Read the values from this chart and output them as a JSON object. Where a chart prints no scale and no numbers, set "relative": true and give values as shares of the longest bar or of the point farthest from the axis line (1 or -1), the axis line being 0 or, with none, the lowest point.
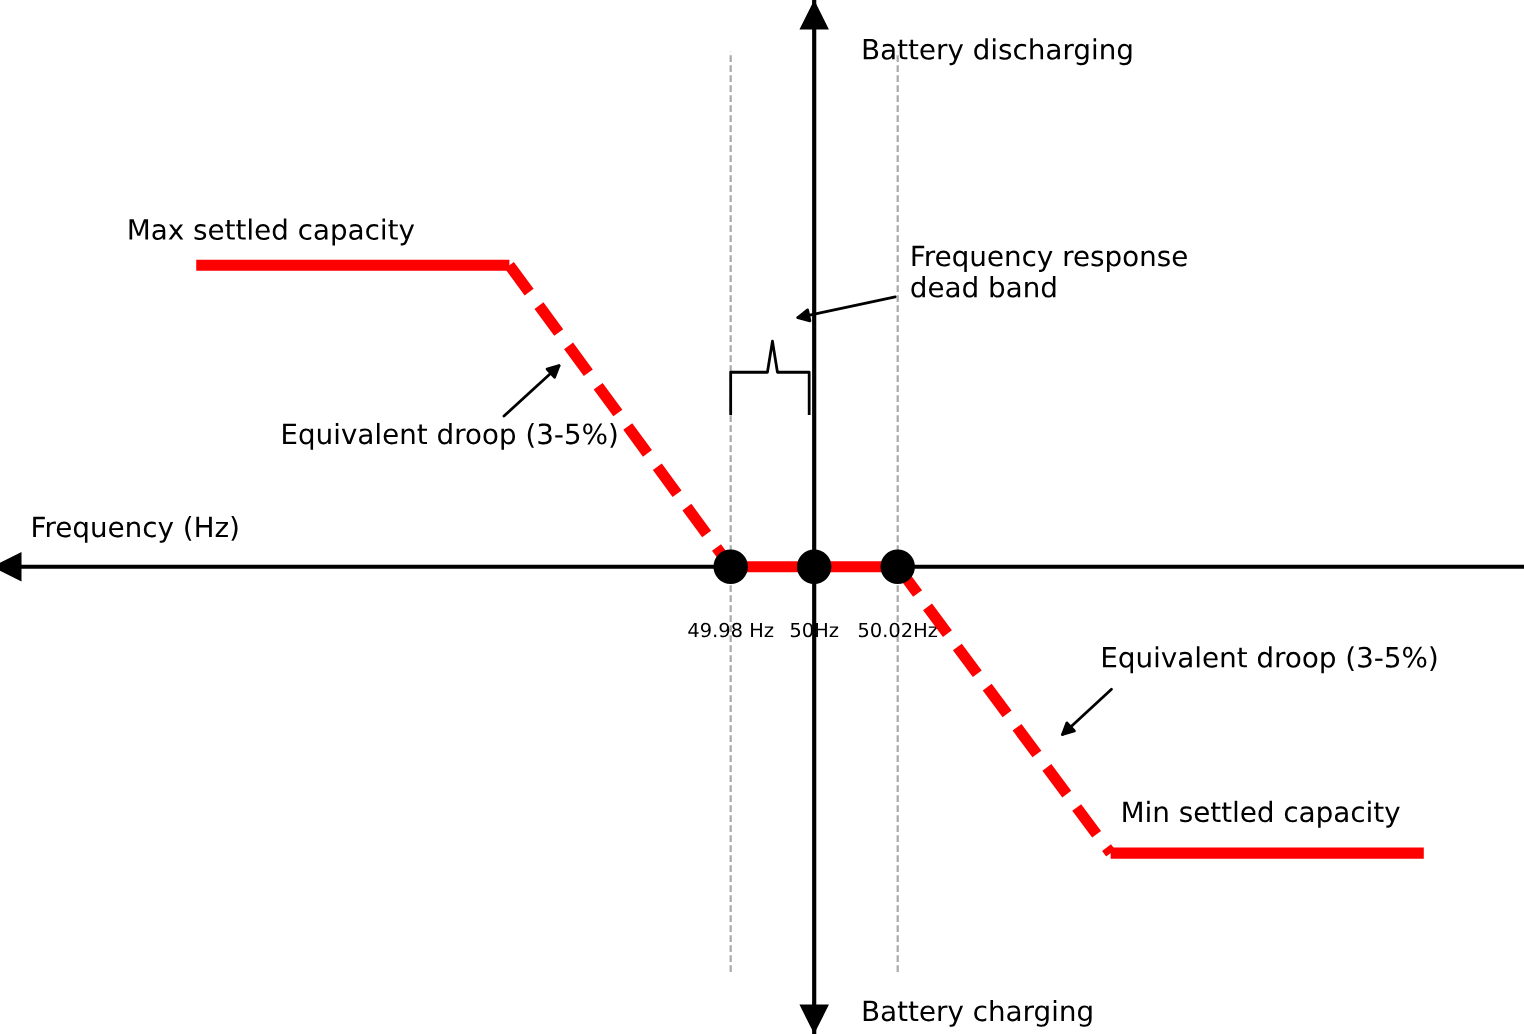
{
  "chart_data": {
    "type": "line",
    "xlabel": "Frequency (Hz)",
    "relative": true,
    "xlim": [
      49.805,
      50.17
    ],
    "xticks": [
      {
        "value": 49.98,
        "label": "49.98 Hz"
      },
      {
        "value": 50,
        "label": "50Hz"
      },
      {
        "value": 50.02,
        "label": "50.02Hz"
      }
    ],
    "series": [
      {
        "x": [
          49.852,
          49.927
        ],
        "values": [
          1,
          1
        ],
        "color": "#ff0000",
        "line_style": "solid"
      },
      {
        "x": [
          49.927,
          49.98
        ],
        "values": [
          1,
          0
        ],
        "color": "#ff0000",
        "line_style": "dashed"
      },
      {
        "x": [
          49.98,
          50.02
        ],
        "values": [
          0,
          0
        ],
        "color": "#ff0000",
        "line_style": "solid"
      },
      {
        "x": [
          50.02,
          50.071
        ],
        "values": [
          0,
          -0.95
        ],
        "color": "#ff0000",
        "line_style": "dashed"
      },
      {
        "x": [
          50.071,
          50.146
        ],
        "values": [
          -0.95,
          -0.95
        ],
        "color": "#ff0000",
        "line_style": "solid"
      },
      {
        "type": "scatter",
        "x": [
          49.98,
          50,
          50.02
        ],
        "values": [
          0,
          0,
          0
        ],
        "color": "#000000",
        "marker": "circle"
      }
    ],
    "ref_lines": [
      {
        "axis": "x",
        "value": 50,
        "color": "#000000",
        "line_style": "solid"
      },
      {
        "axis": "x",
        "value": 49.98,
        "color": "#aaaaaa",
        "line_style": "dashed"
      },
      {
        "axis": "x",
        "value": 50.02,
        "color": "#aaaaaa",
        "line_style": "dashed"
      }
    ],
    "annotations": [
      {
        "text": "Max settled capacity",
        "x": 49.852,
        "y": 1
      },
      "Equivalent droop (3-5%)",
      "Frequency response\ndead band",
      "Equivalent droop (3-5%)",
      {
        "text": "Min settled capacity",
        "x": 50.1,
        "y": -0.95
      },
      "Battery discharging",
      "Battery charging"
    ],
    "grid": false
  }
}
